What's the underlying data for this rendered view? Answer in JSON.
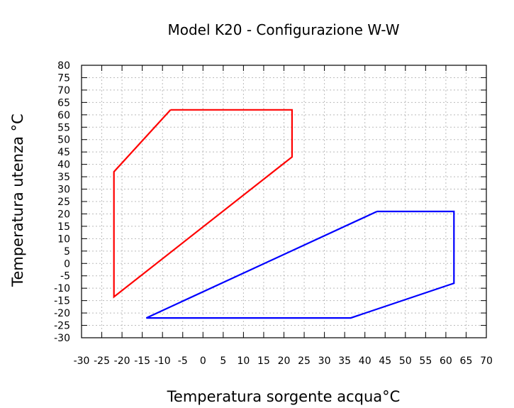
{
  "chart_data": {
    "type": "line",
    "title": "Model K20 - Configurazione W-W",
    "xlabel": "Temperatura sorgente acqua°C",
    "ylabel": "Temperatura utenza °C",
    "xlim": [
      -30,
      70
    ],
    "ylim": [
      -30,
      80
    ],
    "x_ticks": [
      -30,
      -25,
      -20,
      -15,
      -10,
      -5,
      0,
      5,
      10,
      15,
      20,
      25,
      30,
      35,
      40,
      45,
      50,
      55,
      60,
      65,
      70
    ],
    "y_ticks": [
      -30,
      -25,
      -20,
      -15,
      -10,
      -5,
      0,
      5,
      10,
      15,
      20,
      25,
      30,
      35,
      40,
      45,
      50,
      55,
      60,
      65,
      70,
      75,
      80
    ],
    "grid": true,
    "series": [
      {
        "color": "#ff0000",
        "points": [
          [
            -8,
            62
          ],
          [
            22,
            62
          ],
          [
            22,
            43
          ],
          [
            -22,
            -13.5
          ],
          [
            -22,
            37
          ],
          [
            -8,
            62
          ]
        ]
      },
      {
        "color": "#0000ff",
        "points": [
          [
            43,
            21
          ],
          [
            62,
            21
          ],
          [
            62,
            -8
          ],
          [
            36.5,
            -22
          ],
          [
            -14,
            -22
          ],
          [
            43,
            21
          ]
        ]
      }
    ]
  }
}
